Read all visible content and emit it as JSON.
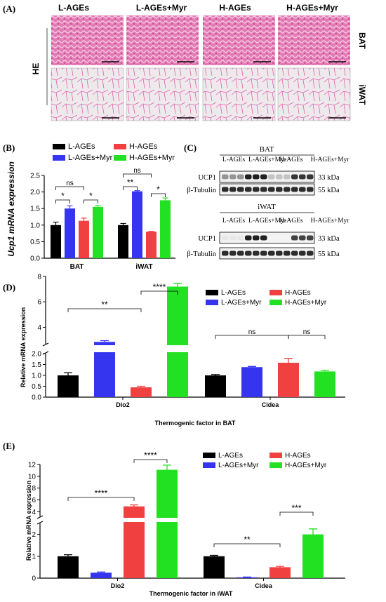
{
  "colors": {
    "l_ages": "#000000",
    "l_ages_myr": "#3535f0",
    "h_ages": "#f04040",
    "h_ages_myr": "#22e022",
    "he_bat": "#e85aa8",
    "he_iwat": "#ece6ea"
  },
  "panel_a": {
    "label": "(A)",
    "columns": [
      "L-AGEs",
      "L-AGEs+Myr",
      "H-AGEs",
      "H-AGEs+Myr"
    ],
    "row_labels": [
      "BAT",
      "iWAT"
    ],
    "stain_label": "HE"
  },
  "panel_c": {
    "label": "(C)",
    "blots": [
      {
        "title": "BAT",
        "lanes": [
          "L-AGEs",
          "L-AGEs+Myr",
          "H-AGEs",
          "H-AGEs+Myr"
        ],
        "rows": [
          {
            "protein": "UCP1",
            "size": "33 kDa",
            "intensity": [
              0.45,
              0.95,
              0.25,
              0.85
            ]
          },
          {
            "protein": "β-Tubulin",
            "size": "55 kDa",
            "intensity": [
              0.9,
              0.9,
              0.9,
              0.9
            ]
          }
        ]
      },
      {
        "title": "iWAT",
        "lanes": [
          "L-AGEs",
          "L-AGEs+Myr",
          "H-AGEs",
          "H-AGEs+Myr"
        ],
        "rows": [
          {
            "protein": "UCP1",
            "size": "33 kDa",
            "intensity": [
              0.1,
              0.95,
              0.05,
              0.8
            ]
          },
          {
            "protein": "β-Tubulin",
            "size": "55 kDa",
            "intensity": [
              0.9,
              0.9,
              0.9,
              0.9
            ]
          }
        ]
      }
    ]
  },
  "chart_data": [
    {
      "panel": "(B)",
      "type": "bar",
      "title": "",
      "ylabel": "Ucp1 mRNA expression",
      "xlabel": "",
      "categories": [
        "BAT",
        "iWAT"
      ],
      "yticks": [
        0.0,
        0.5,
        1.0,
        1.5,
        2.0,
        2.5
      ],
      "ylim": [
        0,
        2.5
      ],
      "legend": [
        "L-AGEs",
        "L-AGEs+Myr",
        "H-AGEs",
        "H-AGEs+Myr"
      ],
      "series": [
        {
          "name": "L-AGEs",
          "values": [
            1.0,
            1.0
          ],
          "err": [
            0.09,
            0.05
          ]
        },
        {
          "name": "L-AGEs+Myr",
          "values": [
            1.5,
            2.02
          ],
          "err": [
            0.08,
            0.02
          ]
        },
        {
          "name": "H-AGEs",
          "values": [
            1.13,
            0.8
          ],
          "err": [
            0.08,
            0.01
          ]
        },
        {
          "name": "H-AGEs+Myr",
          "values": [
            1.55,
            1.75
          ],
          "err": [
            0.04,
            0.07
          ]
        }
      ],
      "sig": [
        "*",
        "*",
        "ns",
        "**",
        "*",
        "ns"
      ]
    },
    {
      "panel": "(D)",
      "type": "bar",
      "title": "",
      "ylabel": "Relative mRNA expression",
      "xlabel": "Thermogenic factor in BAT",
      "categories": [
        "Dio2",
        "Cidea"
      ],
      "yticks_lower": [
        0.0,
        0.5,
        1.0,
        1.5,
        2.0
      ],
      "yticks_upper": [
        4,
        6,
        8
      ],
      "axis_break": [
        2.2,
        2.7
      ],
      "legend": [
        "L-AGEs",
        "L-AGEs+Myr",
        "H-AGEs",
        "H-AGEs+Myr"
      ],
      "series": [
        {
          "name": "L-AGEs",
          "values": [
            1.0,
            1.0
          ],
          "err": [
            0.12,
            0.04
          ]
        },
        {
          "name": "L-AGEs+Myr",
          "values": [
            2.85,
            1.38
          ],
          "err": [
            0.1,
            0.03
          ]
        },
        {
          "name": "H-AGEs",
          "values": [
            0.45,
            1.58
          ],
          "err": [
            0.05,
            0.2
          ]
        },
        {
          "name": "H-AGEs+Myr",
          "values": [
            7.2,
            1.18
          ],
          "err": [
            0.25,
            0.05
          ]
        }
      ],
      "sig": [
        "**",
        "****",
        "ns",
        "ns"
      ]
    },
    {
      "panel": "(E)",
      "type": "bar",
      "title": "",
      "ylabel": "Relative mRNA expression",
      "xlabel": "Thermogenic factor in iWAT",
      "categories": [
        "Dio2",
        "Cidea"
      ],
      "yticks_lower": [
        0,
        1,
        2
      ],
      "yticks_upper": [
        4,
        6,
        8,
        10,
        12
      ],
      "axis_break": [
        2.5,
        3.2
      ],
      "legend": [
        "L-AGEs",
        "L-AGEs+Myr",
        "H-AGEs",
        "H-AGEs+Myr"
      ],
      "series": [
        {
          "name": "L-AGEs",
          "values": [
            1.0,
            1.0
          ],
          "err": [
            0.07,
            0.04
          ]
        },
        {
          "name": "L-AGEs+Myr",
          "values": [
            0.25,
            0.04
          ],
          "err": [
            0.03,
            0.01
          ]
        },
        {
          "name": "H-AGEs",
          "values": [
            4.9,
            0.5
          ],
          "err": [
            0.25,
            0.04
          ]
        },
        {
          "name": "H-AGEs+Myr",
          "values": [
            11.1,
            2.0
          ],
          "err": [
            0.8,
            0.25
          ]
        }
      ],
      "sig": [
        "****",
        "****",
        "**",
        "***"
      ]
    }
  ]
}
